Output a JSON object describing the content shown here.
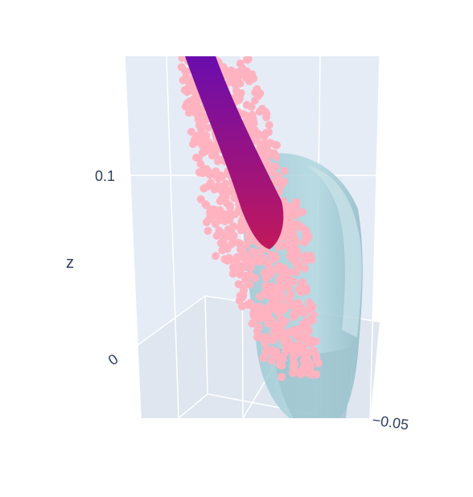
{
  "chart_data": {
    "type": "scatter",
    "subtype": "3d",
    "zaxis": {
      "label": "z",
      "tick_labels": [
        "0.1",
        "0"
      ],
      "ticks": [
        0.1,
        0
      ]
    },
    "xaxis": {
      "tick_labels_partial": [
        "0.05"
      ]
    },
    "scene_background": "#e5ecf6",
    "gridlines": true,
    "series": [
      {
        "kind": "scatter3d",
        "marker_color": "#ffb3c1",
        "description_color": "pink"
      },
      {
        "kind": "line3d",
        "colorscale": [
          "#6a0dad",
          "#c2185b"
        ]
      },
      {
        "kind": "mesh3d",
        "color": "#a8d0d9",
        "opacity": 0.7
      }
    ]
  },
  "colors": {
    "axis_text": "#2a3f5f",
    "grid": "#ffffff",
    "scene_bg": "#e5ecf6",
    "points": "#ffb3c1",
    "tube_start": "#6a0dad",
    "tube_end": "#c2185b",
    "mesh": "#a8d0d9"
  }
}
